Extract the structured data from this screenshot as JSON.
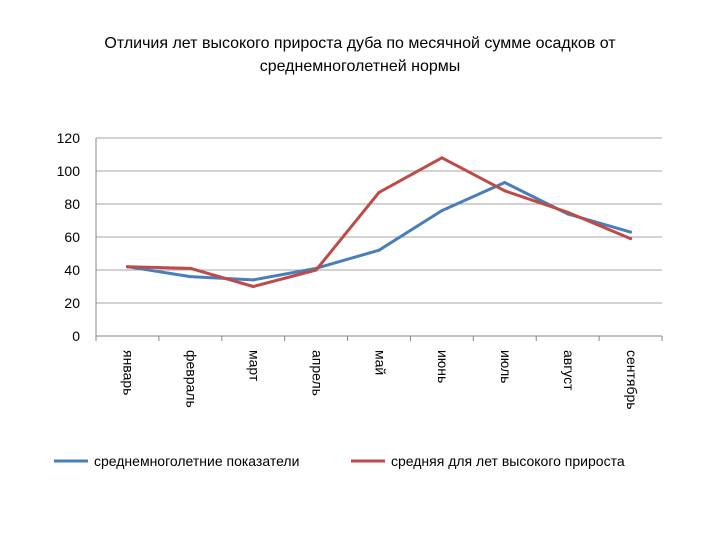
{
  "title_lines": [
    "Отличия лет высокого прироста дуба по месячной сумме осадков от",
    "среднемноголетней нормы"
  ],
  "chart_data": {
    "type": "line",
    "title": "Отличия лет высокого прироста дуба по месячной сумме осадков от среднемноголетней нормы",
    "categories": [
      "январь",
      "февраль",
      "март",
      "апрель",
      "май",
      "июнь",
      "июль",
      "август",
      "сентябрь"
    ],
    "y_ticks": [
      "0",
      "20",
      "40",
      "60",
      "80",
      "100",
      "120"
    ],
    "ylim": [
      0,
      120
    ],
    "grid": true,
    "legend_position": "bottom",
    "series": [
      {
        "name": "среднемноголетние показатели",
        "color": "#4a7ebb",
        "values": [
          42,
          36,
          34,
          41,
          52,
          76,
          93,
          74,
          63
        ]
      },
      {
        "name": "средняя для лет высокого прироста",
        "color": "#be4b48",
        "values": [
          42,
          41,
          30,
          40,
          87,
          108,
          88,
          75,
          59
        ]
      }
    ]
  }
}
